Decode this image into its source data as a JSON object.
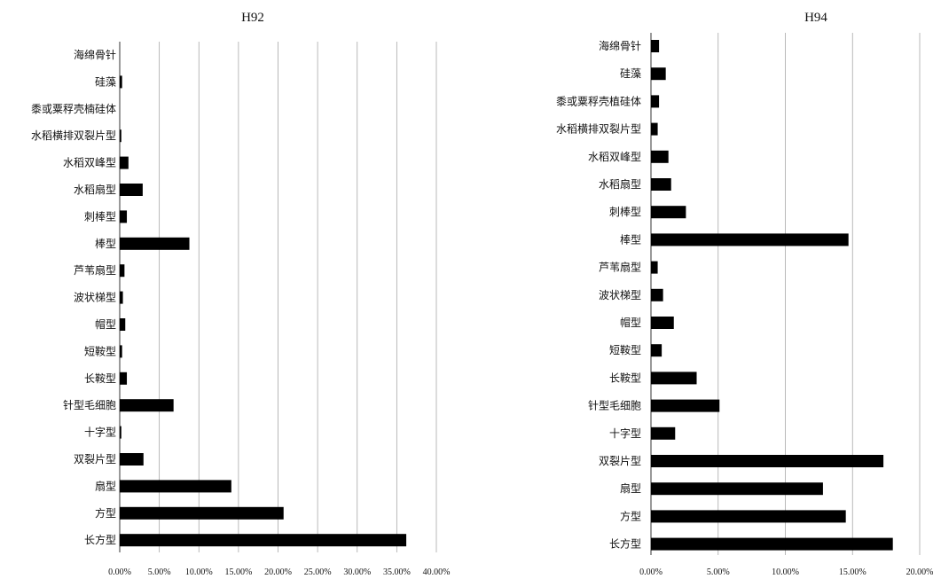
{
  "chart_data": [
    {
      "type": "bar",
      "orientation": "horizontal",
      "title": "H92",
      "xlabel": "",
      "ylabel": "",
      "categories": [
        "海绵骨针",
        "硅藻",
        "黍或粟稃壳楠硅体",
        "水稻横排双裂片型",
        "水稻双峰型",
        "水稻扇型",
        "刺棒型",
        "棒型",
        "芦苇扇型",
        "波状梯型",
        "帽型",
        "短鞍型",
        "长鞍型",
        "针型毛细胞",
        "十字型",
        "双裂片型",
        "扇型",
        "方型",
        "长方型"
      ],
      "values": [
        0.0,
        0.3,
        0.0,
        0.2,
        1.1,
        2.9,
        0.9,
        8.8,
        0.6,
        0.4,
        0.7,
        0.3,
        0.9,
        6.8,
        0.2,
        3.0,
        14.1,
        20.7,
        36.2
      ],
      "xlim": [
        0,
        40
      ],
      "xticks": [
        "0.00%",
        "5.00%",
        "10.00%",
        "15.00%",
        "20.00%",
        "25.00%",
        "30.00%",
        "35.00%",
        "40.00%"
      ],
      "grid": "vertical",
      "legend": "none",
      "bar_color": "#000000"
    },
    {
      "type": "bar",
      "orientation": "horizontal",
      "title": "H94",
      "xlabel": "",
      "ylabel": "",
      "categories": [
        "海绵骨针",
        "硅藻",
        "黍或粟稃壳植硅体",
        "水稻横排双裂片型",
        "水稻双峰型",
        "水稻扇型",
        "刺棒型",
        "棒型",
        "芦苇扇型",
        "波状梯型",
        "帽型",
        "短鞍型",
        "长鞍型",
        "针型毛细胞",
        "十字型",
        "双裂片型",
        "扇型",
        "方型",
        "长方型"
      ],
      "values": [
        0.6,
        1.1,
        0.6,
        0.5,
        1.3,
        1.5,
        2.6,
        14.7,
        0.5,
        0.9,
        1.7,
        0.8,
        3.4,
        5.1,
        1.8,
        17.3,
        12.8,
        14.5,
        18.0
      ],
      "xlim": [
        0,
        20
      ],
      "xticks": [
        "0.00%",
        "5.00%",
        "10.00%",
        "15.00%",
        "20.00%"
      ],
      "grid": "vertical",
      "legend": "none",
      "bar_color": "#000000"
    }
  ]
}
